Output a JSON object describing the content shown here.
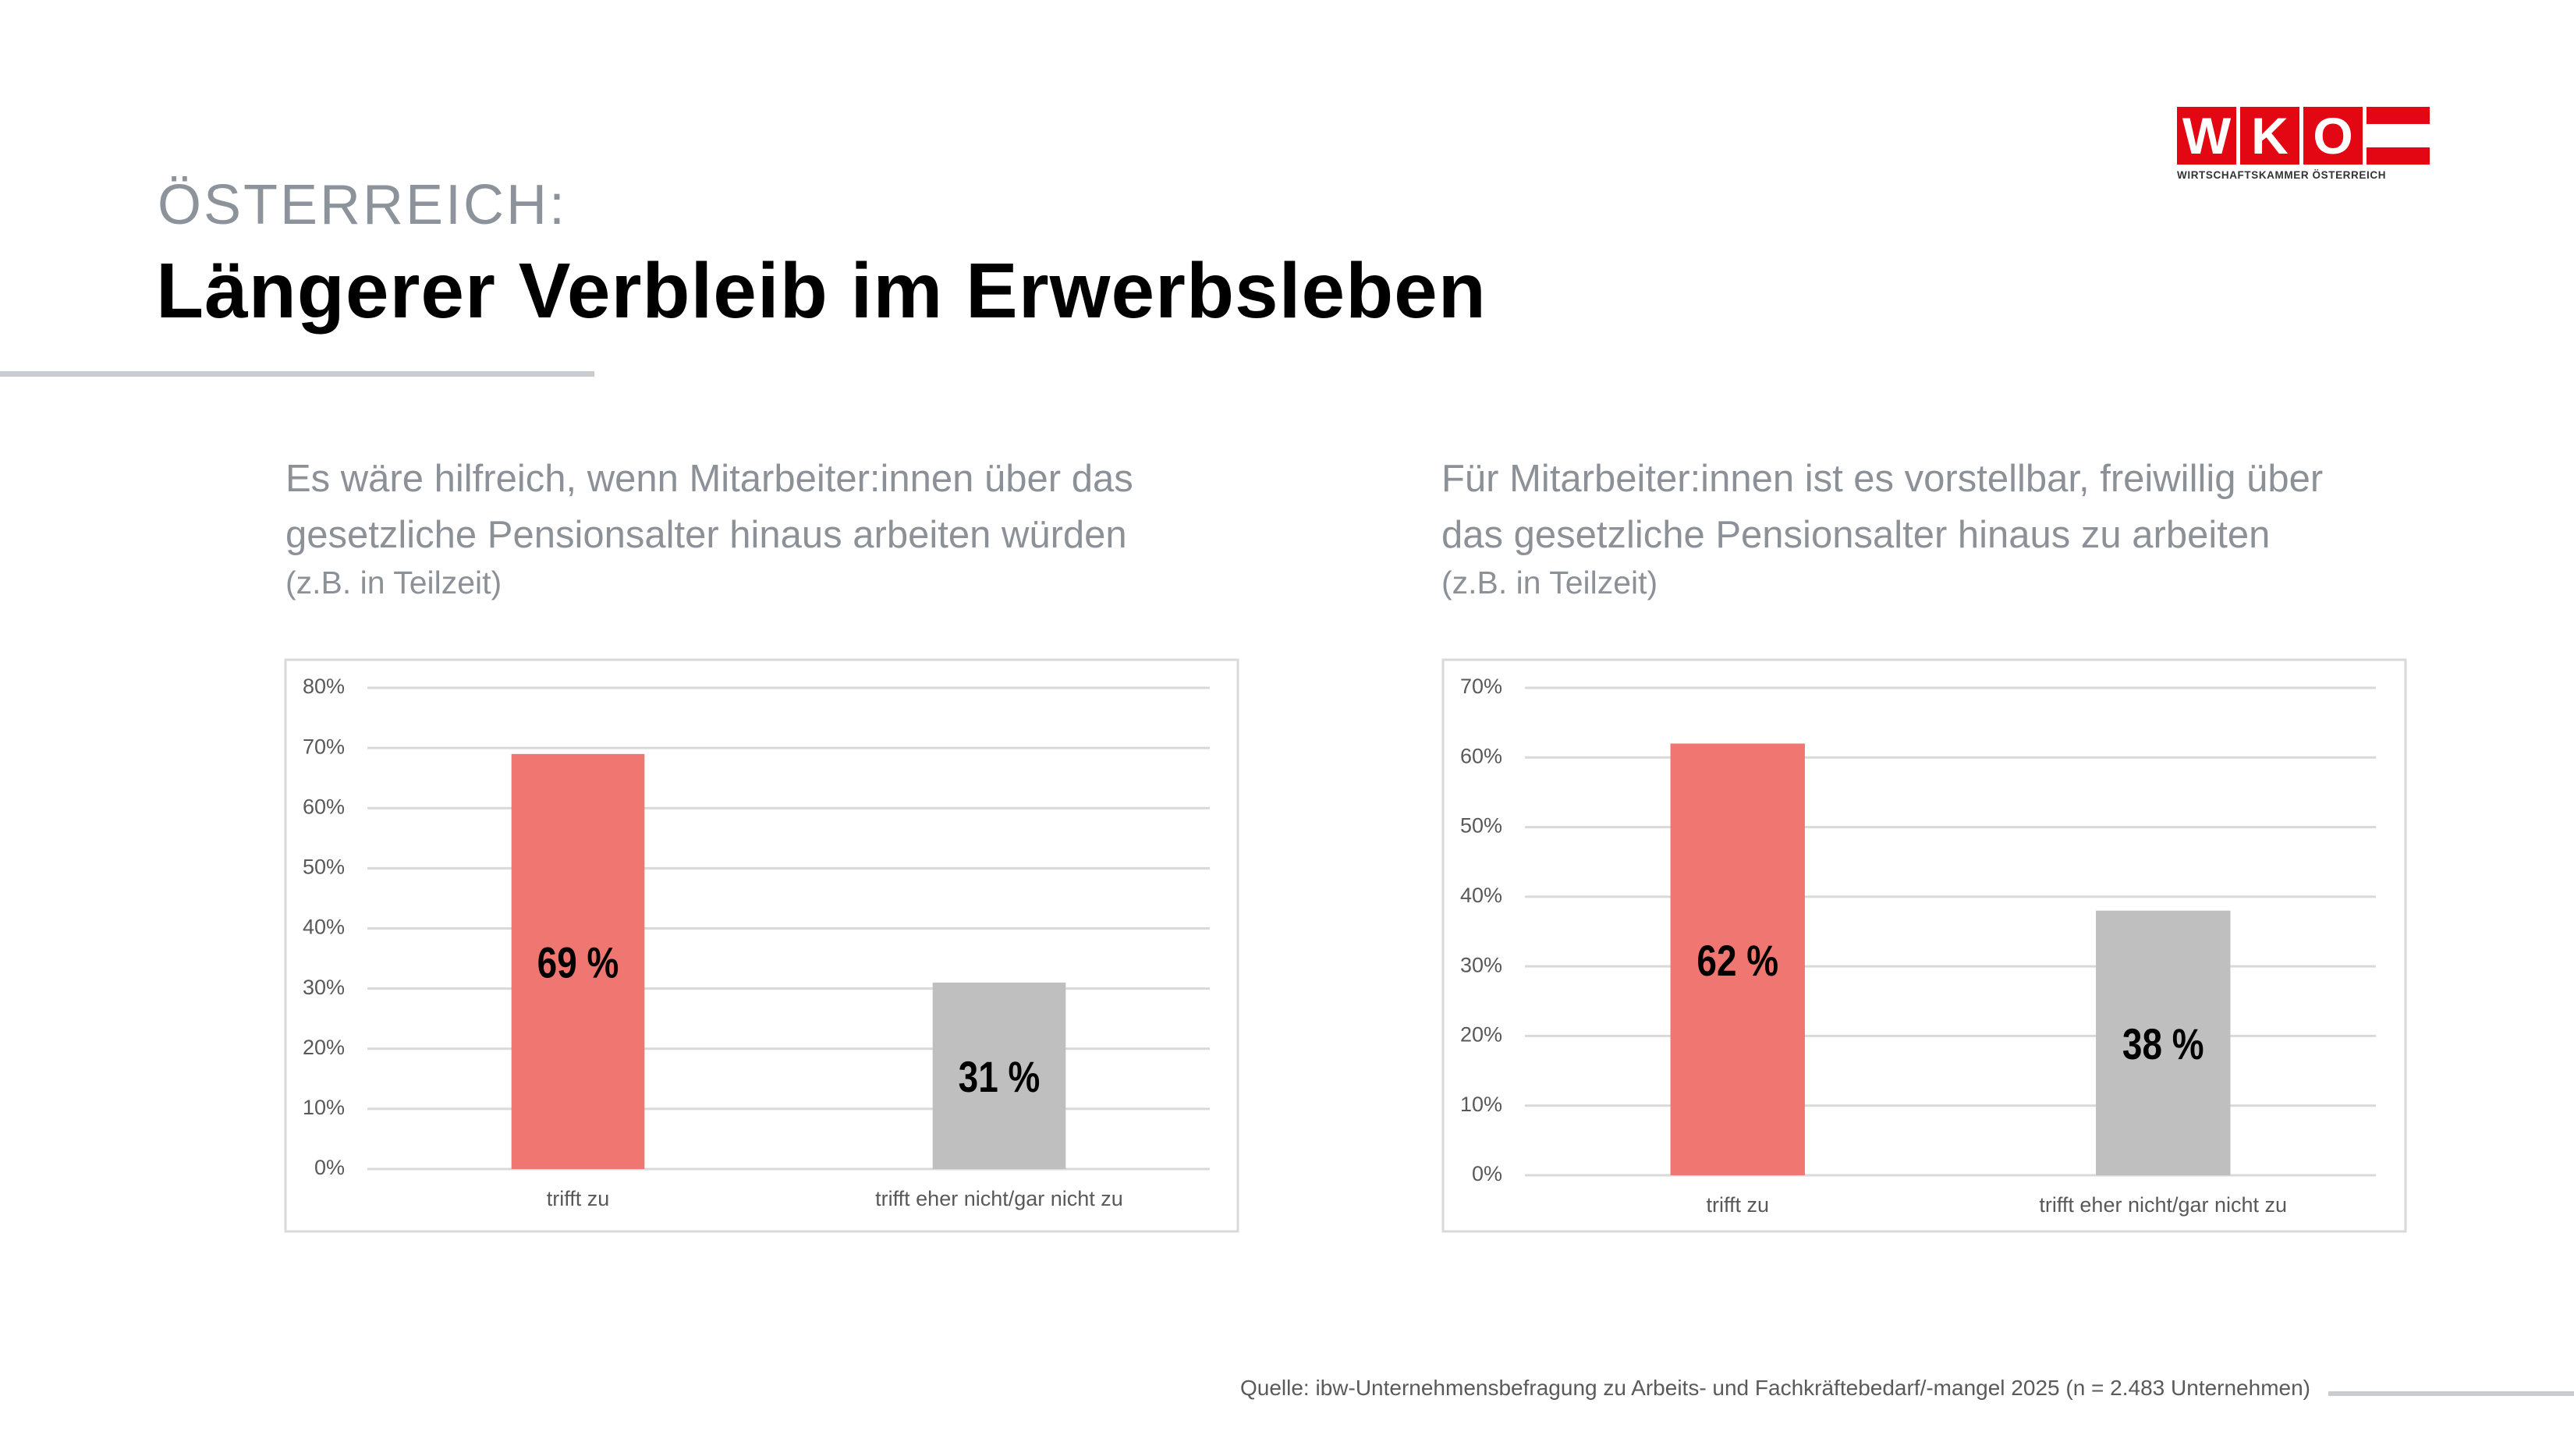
{
  "header": {
    "supertitle": "ÖSTERREICH:",
    "title": "Längerer Verbleib im Erwerbsleben",
    "logo": "WKO",
    "logo_text": "WIRTSCHAFTSKAMMER ÖSTERREICH"
  },
  "footer": {
    "source": "Quelle: ibw-Unternehmensbefragung zu Arbeits- und Fachkräftebedarf/-mangel 2025 (n = 2.483 Unternehmen)"
  },
  "chart_data": [
    {
      "type": "bar",
      "title": "Es wäre hilfreich, wenn Mitarbeiter:innen über das gesetzliche Pensionsalter hinaus arbeiten würden",
      "subtitle": "(z.B. in Teilzeit)",
      "categories": [
        "trifft zu",
        "trifft eher nicht/gar nicht zu"
      ],
      "values": [
        69,
        31
      ],
      "value_labels": [
        "69 %",
        "31 %"
      ],
      "colors": [
        "#f07671",
        "#bfbfbf"
      ],
      "ylim": [
        0,
        80
      ],
      "yticks": [
        {
          "value": 0,
          "label": "0%"
        },
        {
          "value": 10,
          "label": "10%"
        },
        {
          "value": 20,
          "label": "20%"
        },
        {
          "value": 30,
          "label": "30%"
        },
        {
          "value": 40,
          "label": "40%"
        },
        {
          "value": 50,
          "label": "50%"
        },
        {
          "value": 60,
          "label": "60%"
        },
        {
          "value": 70,
          "label": "70%"
        },
        {
          "value": 80,
          "label": "80%"
        }
      ],
      "grid": true
    },
    {
      "type": "bar",
      "title": "Für Mitarbeiter:innen ist es vorstellbar, freiwillig über das gesetzliche Pensionsalter hinaus zu arbeiten",
      "subtitle": "(z.B. in Teilzeit)",
      "categories": [
        "trifft zu",
        "trifft eher nicht/gar nicht zu"
      ],
      "values": [
        62,
        38
      ],
      "value_labels": [
        "62 %",
        "38 %"
      ],
      "colors": [
        "#f07671",
        "#bfbfbf"
      ],
      "ylim": [
        0,
        70
      ],
      "yticks": [
        {
          "value": 0,
          "label": "0%"
        },
        {
          "value": 10,
          "label": "10%"
        },
        {
          "value": 20,
          "label": "20%"
        },
        {
          "value": 30,
          "label": "30%"
        },
        {
          "value": 40,
          "label": "40%"
        },
        {
          "value": 50,
          "label": "50%"
        },
        {
          "value": 60,
          "label": "60%"
        },
        {
          "value": 70,
          "label": "70%"
        }
      ],
      "grid": true
    }
  ]
}
